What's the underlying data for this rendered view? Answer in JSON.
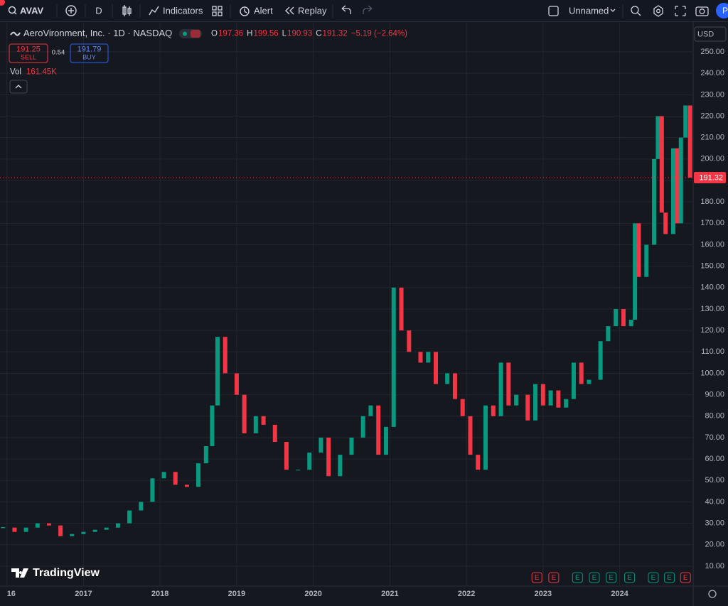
{
  "toolbar": {
    "symbol": "AVAV",
    "interval": "D",
    "indicators": "Indicators",
    "alert": "Alert",
    "replay": "Replay",
    "layout_name": "Unnamed",
    "user_initial": "P"
  },
  "chart_data": {
    "type": "candlestick",
    "currency": "USD",
    "legend": {
      "symbol_line": "AeroVironment, Inc. · 1D · NASDAQ",
      "open_label": "O",
      "high_label": "H",
      "low_label": "L",
      "close_label": "C",
      "change": "−5.19 (−2.64%)"
    },
    "ohlc": {
      "open": 197.36,
      "high": 199.56,
      "low": 190.93,
      "close": 191.32
    },
    "trade": {
      "sell_price": "191.25",
      "sell_label": "SELL",
      "spread": "0.54",
      "buy_price": "191.79",
      "buy_label": "BUY"
    },
    "volume": {
      "label": "Vol",
      "value": "161.45K"
    },
    "brand": "TradingView",
    "up_color": "#089981",
    "down_color": "#f23645",
    "grid": true,
    "x": [
      2015.95,
      2016.1,
      2016.25,
      2016.4,
      2016.55,
      2016.7,
      2016.85,
      2017.0,
      2017.15,
      2017.3,
      2017.45,
      2017.6,
      2017.75,
      2017.9,
      2018.05,
      2018.2,
      2018.35,
      2018.5,
      2018.6,
      2018.68,
      2018.75,
      2018.85,
      2019.0,
      2019.1,
      2019.25,
      2019.35,
      2019.5,
      2019.65,
      2019.8,
      2019.95,
      2020.1,
      2020.2,
      2020.35,
      2020.5,
      2020.65,
      2020.75,
      2020.85,
      2020.95,
      2021.05,
      2021.15,
      2021.25,
      2021.4,
      2021.5,
      2021.6,
      2021.75,
      2021.85,
      2021.95,
      2022.05,
      2022.15,
      2022.25,
      2022.35,
      2022.45,
      2022.55,
      2022.65,
      2022.8,
      2022.9,
      2023.0,
      2023.1,
      2023.2,
      2023.3,
      2023.4,
      2023.5,
      2023.6,
      2023.75,
      2023.85,
      2023.95,
      2024.05,
      2024.15,
      2024.2,
      2024.25,
      2024.35,
      2024.45,
      2024.5,
      2024.55,
      2024.6,
      2024.7,
      2024.75,
      2024.8,
      2024.86,
      2024.92
    ],
    "close": [
      28,
      26,
      28,
      30,
      29,
      24,
      25,
      26,
      27,
      28,
      30,
      36,
      40,
      51,
      54,
      48,
      47,
      58,
      66,
      85,
      117,
      100,
      90,
      72,
      80,
      76,
      68,
      55,
      55,
      63,
      70,
      52,
      62,
      70,
      80,
      85,
      62,
      75,
      140,
      120,
      110,
      105,
      110,
      95,
      100,
      88,
      80,
      62,
      55,
      85,
      80,
      105,
      85,
      90,
      78,
      95,
      85,
      92,
      84,
      88,
      105,
      95,
      97,
      115,
      122,
      130,
      122,
      125,
      170,
      145,
      160,
      200,
      220,
      175,
      165,
      205,
      170,
      210,
      225,
      191.32
    ],
    "xlim": [
      2015.91,
      2024.96
    ],
    "ylim": [
      0.7,
      263.6
    ],
    "xticks": [
      {
        "value": 2016,
        "label": "16"
      },
      2017,
      2018,
      2019,
      2020,
      2021,
      2022,
      2023,
      2024
    ],
    "yticks": [
      {
        "value": 10,
        "label": "10.00"
      },
      {
        "value": 20,
        "label": "20.00"
      },
      {
        "value": 30,
        "label": "30.00"
      },
      {
        "value": 40,
        "label": "40.00"
      },
      {
        "value": 50,
        "label": "50.00"
      },
      {
        "value": 60,
        "label": "60.00"
      },
      {
        "value": 70,
        "label": "70.00"
      },
      {
        "value": 80,
        "label": "80.00"
      },
      {
        "value": 90,
        "label": "90.00"
      },
      {
        "value": 100,
        "label": "100.00"
      },
      {
        "value": 110,
        "label": "110.00"
      },
      {
        "value": 120,
        "label": "120.00"
      },
      {
        "value": 130,
        "label": "130.00"
      },
      {
        "value": 140,
        "label": "140.00"
      },
      {
        "value": 150,
        "label": "150.00"
      },
      {
        "value": 160,
        "label": "160.00"
      },
      {
        "value": 170,
        "label": "170.00"
      },
      {
        "value": 180,
        "label": "180.00"
      },
      {
        "value": 190,
        "label": "190.00"
      },
      {
        "value": 200,
        "label": "200.00"
      },
      {
        "value": 210,
        "label": "210.00"
      },
      {
        "value": 220,
        "label": "220.00"
      },
      {
        "value": 230,
        "label": "230.00"
      },
      {
        "value": 240,
        "label": "240.00"
      },
      {
        "value": 250,
        "label": "250.00"
      }
    ],
    "earnings": [
      {
        "x": 2022.92,
        "label": "E",
        "color": "#f23645"
      },
      {
        "x": 2023.14,
        "label": "E",
        "color": "#f23645"
      },
      {
        "x": 2023.45,
        "label": "E",
        "color": "#089981"
      },
      {
        "x": 2023.67,
        "label": "E",
        "color": "#089981"
      },
      {
        "x": 2023.89,
        "label": "E",
        "color": "#089981"
      },
      {
        "x": 2024.13,
        "label": "E",
        "color": "#089981"
      },
      {
        "x": 2024.44,
        "label": "E",
        "color": "#089981"
      },
      {
        "x": 2024.65,
        "label": "E",
        "color": "#089981"
      },
      {
        "x": 2024.86,
        "label": "E",
        "color": "#f23645"
      }
    ]
  }
}
